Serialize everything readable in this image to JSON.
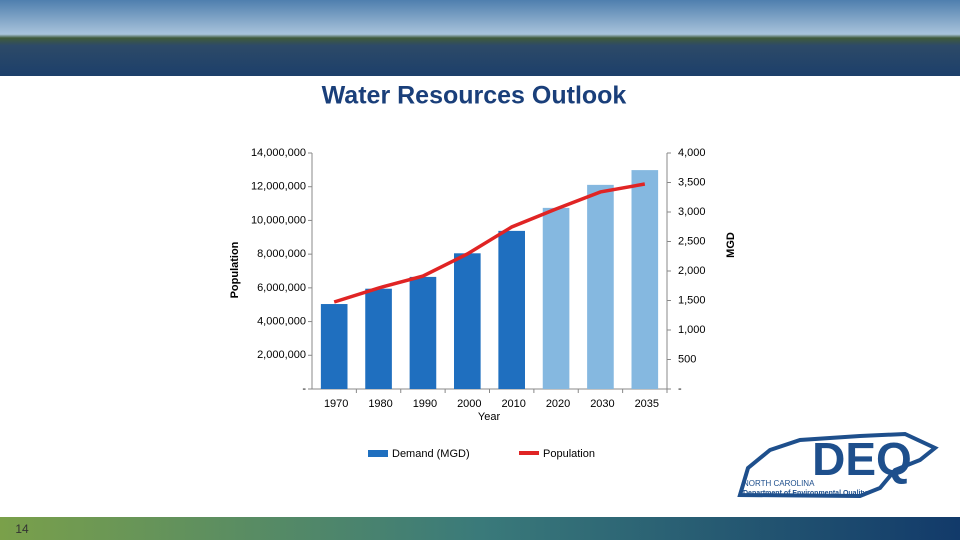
{
  "chart_data": {
    "type": "bar",
    "title": "Water Resources Outlook",
    "xlabel": "Year",
    "ylabel": "Population",
    "y2label": "MGD",
    "categories": [
      "1970",
      "1980",
      "1990",
      "2000",
      "2010",
      "2020",
      "2030",
      "2035"
    ],
    "series": [
      {
        "name": "Demand (MGD)",
        "type": "bar",
        "axis": "y2",
        "color": "#1f6fbf",
        "colors": [
          "#1f6fbf",
          "#1f6fbf",
          "#1f6fbf",
          "#1f6fbf",
          "#1f6fbf",
          "#85b8e0",
          "#85b8e0",
          "#85b8e0"
        ],
        "values": [
          1440,
          1700,
          1900,
          2300,
          2680,
          3070,
          3460,
          3710
        ]
      },
      {
        "name": "Population",
        "type": "line",
        "color": "#e02424",
        "values": [
          5160000,
          5990000,
          6700000,
          8010000,
          9610000,
          10680000,
          11690000,
          12160000
        ]
      }
    ],
    "ylim": [
      0,
      14000000
    ],
    "yticks": [
      {
        "value": 0,
        "label": "-"
      },
      {
        "value": 2000000,
        "label": "2,000,000"
      },
      {
        "value": 4000000,
        "label": "4,000,000"
      },
      {
        "value": 6000000,
        "label": "6,000,000"
      },
      {
        "value": 8000000,
        "label": "8,000,000"
      },
      {
        "value": 10000000,
        "label": "10,000,000"
      },
      {
        "value": 12000000,
        "label": "12,000,000"
      },
      {
        "value": 14000000,
        "label": "14,000,000"
      }
    ],
    "y2lim": [
      0,
      4000
    ],
    "y2ticks": [
      {
        "value": 0,
        "label": "-"
      },
      500,
      {
        "value": 1000,
        "label": "1,000"
      },
      {
        "value": 1500,
        "label": "1,500"
      },
      {
        "value": 2000,
        "label": "2,000"
      },
      {
        "value": 2500,
        "label": "2,500"
      },
      {
        "value": 3000,
        "label": "3,000"
      },
      {
        "value": 3500,
        "label": "3,500"
      },
      {
        "value": 4000,
        "label": "4,000"
      }
    ],
    "grid": false,
    "legend": "bottom"
  },
  "slide": {
    "page_number": "14",
    "logo": {
      "mark": "DEQ",
      "state": "NORTH CAROLINA",
      "agency": "Department of Environmental Quality"
    }
  }
}
